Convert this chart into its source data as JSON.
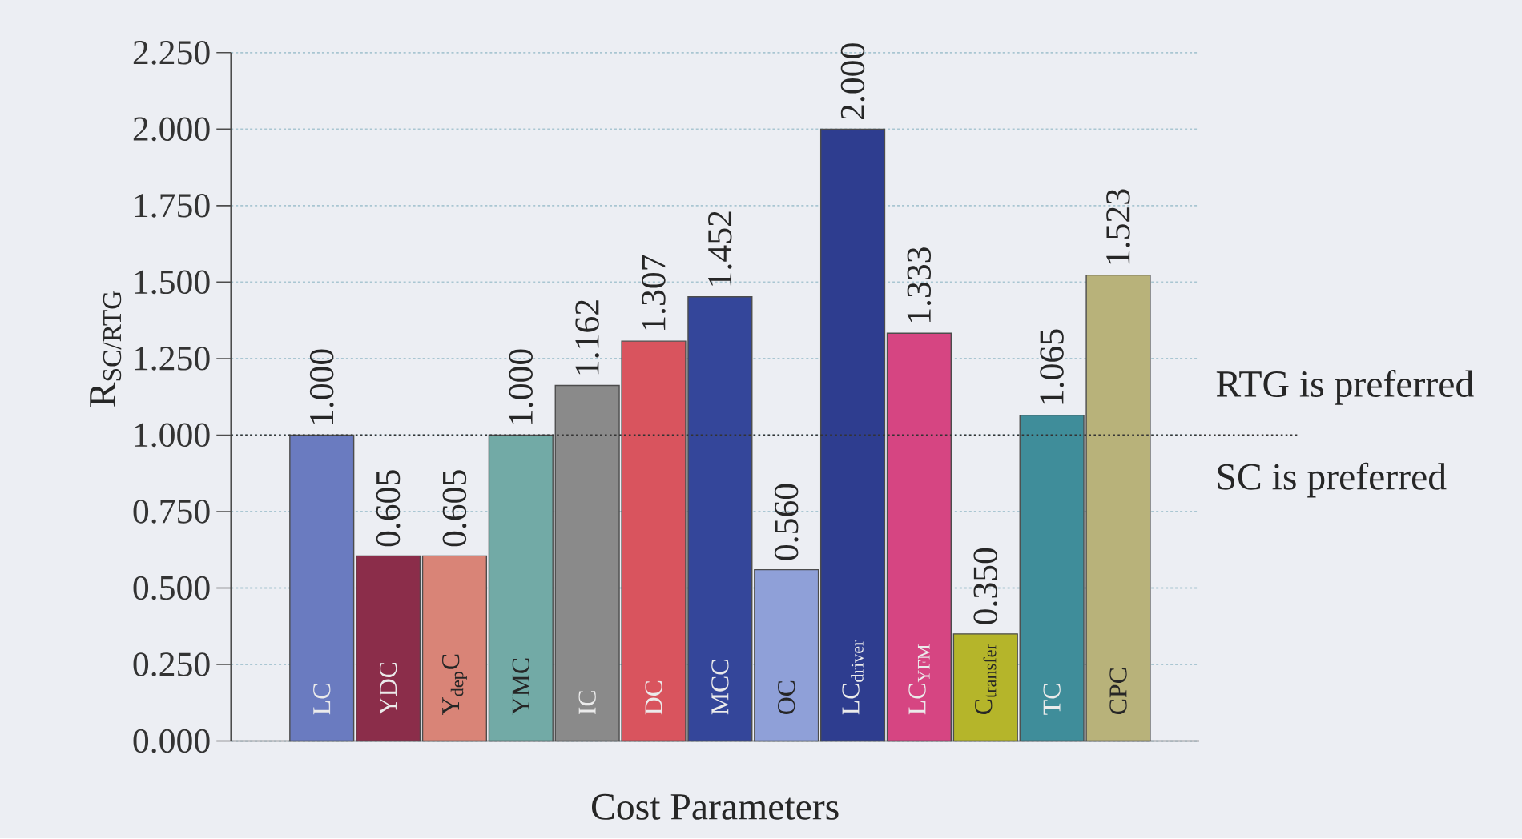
{
  "chart_data": {
    "type": "bar",
    "xlabel": "Cost Parameters",
    "ylabel": "R$_{SC/RTG}$",
    "categories": [
      "LC",
      "YDC",
      "Y$_{dep}$C",
      "YMC",
      "IC",
      "DC",
      "MCC",
      "OC",
      "LC$_{driver}$",
      "LC$_{YFM}$",
      "C$_{transfer}$",
      "TC",
      "CPC"
    ],
    "values": [
      1.0,
      0.605,
      0.605,
      1.0,
      1.162,
      1.307,
      1.452,
      0.56,
      2.0,
      1.333,
      0.35,
      1.065,
      1.523
    ],
    "value_labels": [
      "1.000",
      "0.605",
      "0.605",
      "1.000",
      "1.162",
      "1.307",
      "1.452",
      "0.560",
      "2.000",
      "1.333",
      "0.350",
      "1.065",
      "1.523"
    ],
    "colors": [
      "#6a7bc0",
      "#8b2d4a",
      "#d98477",
      "#72aaa6",
      "#8a8a8a",
      "#d9545e",
      "#34469a",
      "#8fa0d8",
      "#2e3d8f",
      "#d64582",
      "#b5b52a",
      "#3f8d9a",
      "#b8b27a"
    ],
    "ylim": [
      0,
      2.25
    ],
    "yticks": [
      {
        "value": 0,
        "label": "0.000"
      },
      {
        "value": 0.25,
        "label": "0.250"
      },
      {
        "value": 0.5,
        "label": "0.500"
      },
      {
        "value": 0.75,
        "label": "0.750"
      },
      {
        "value": 1,
        "label": "1.000"
      },
      {
        "value": 1.25,
        "label": "1.250"
      },
      {
        "value": 1.5,
        "label": "1.500"
      },
      {
        "value": 1.75,
        "label": "1.750"
      },
      {
        "value": 2,
        "label": "2.000"
      },
      {
        "value": 2.25,
        "label": "2.250"
      }
    ],
    "grid": "y",
    "ref_lines": [
      {
        "axis": "y",
        "value": 1.0,
        "label": "RTG is preferred",
        "line_style": "dotted",
        "color": "#333333"
      }
    ],
    "annotations": [
      "SC is preferred"
    ]
  }
}
